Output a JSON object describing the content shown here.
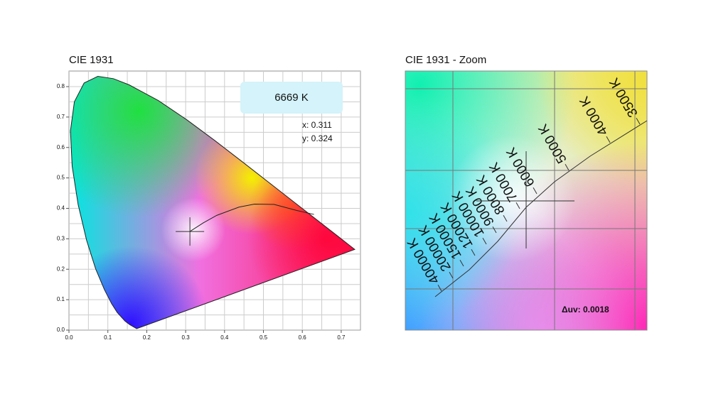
{
  "left": {
    "title": "CIE 1931",
    "cct": "6669 K",
    "x_readout": "x: 0.311",
    "y_readout": "y: 0.324",
    "xticks": [
      {
        "value": 0,
        "label": "0.0"
      },
      {
        "value": 0.1,
        "label": "0.1"
      },
      {
        "value": 0.2,
        "label": "0.2"
      },
      {
        "value": 0.3,
        "label": "0.3"
      },
      {
        "value": 0.4,
        "label": "0.4"
      },
      {
        "value": 0.5,
        "label": "0.5"
      },
      {
        "value": 0.6,
        "label": "0.6"
      },
      {
        "value": 0.7,
        "label": "0.7"
      }
    ],
    "yticks": [
      {
        "value": 0,
        "label": "0.0"
      },
      {
        "value": 0.1,
        "label": "0.1"
      },
      {
        "value": 0.2,
        "label": "0.2"
      },
      {
        "value": 0.3,
        "label": "0.3"
      },
      {
        "value": 0.4,
        "label": "0.4"
      },
      {
        "value": 0.5,
        "label": "0.5"
      },
      {
        "value": 0.6,
        "label": "0.6"
      },
      {
        "value": 0.7,
        "label": "0.7"
      },
      {
        "value": 0.8,
        "label": "0.8"
      }
    ]
  },
  "right": {
    "title": "CIE 1931 - Zoom",
    "isotherms": [
      "3500 K",
      "4000 K",
      "5000 K",
      "6000 K",
      "7000 K",
      "8000 K",
      "9000 K",
      "10000 K",
      "12000 K",
      "15000 K",
      "20000 K",
      "40000 K"
    ],
    "duv": "Δuv: 0.0018"
  }
}
